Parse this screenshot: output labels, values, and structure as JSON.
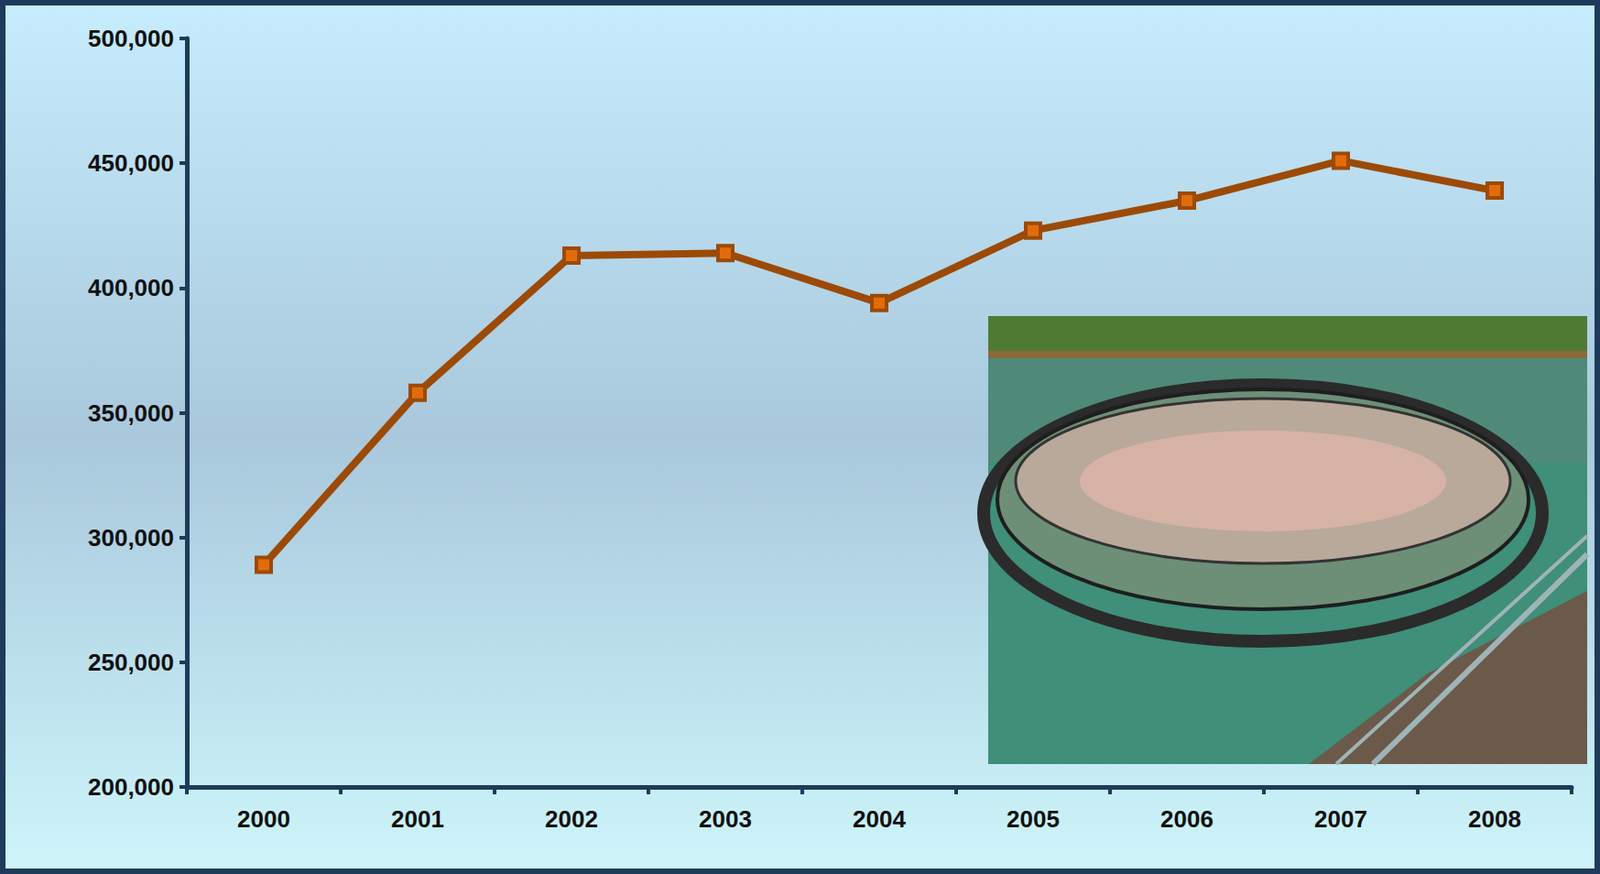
{
  "chart_data": {
    "type": "line",
    "categories": [
      "2000",
      "2001",
      "2002",
      "2003",
      "2004",
      "2005",
      "2006",
      "2007",
      "2008"
    ],
    "values": [
      289000,
      358000,
      413000,
      414000,
      394000,
      423000,
      435000,
      451000,
      439000
    ],
    "color": "#9c4a06",
    "marker": "square",
    "ylim": [
      200000,
      500000
    ],
    "yticks": [
      {
        "value": 200000,
        "label": "200,000"
      },
      {
        "value": 250000,
        "label": "250,000"
      },
      {
        "value": 300000,
        "label": "300,000"
      },
      {
        "value": 350000,
        "label": "350,000"
      },
      {
        "value": 400000,
        "label": "400,000"
      },
      {
        "value": 450000,
        "label": "450,000"
      },
      {
        "value": 500000,
        "label": "500,000"
      }
    ],
    "grid": false
  }
}
